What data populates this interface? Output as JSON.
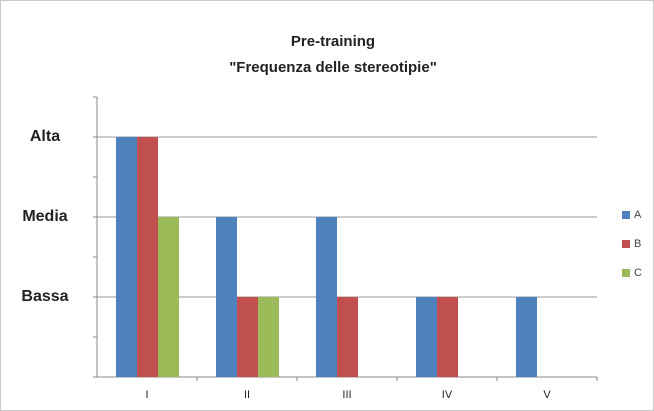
{
  "chart_data": {
    "type": "bar",
    "title": "Pre-training",
    "subtitle": "\"Frequenza delle stereotipie\"",
    "categories": [
      "I",
      "II",
      "III",
      "IV",
      "V"
    ],
    "series": [
      {
        "name": "A",
        "color": "#4f81bd",
        "values": [
          3,
          2,
          2,
          1,
          1
        ]
      },
      {
        "name": "B",
        "color": "#c0504d",
        "values": [
          3,
          1,
          1,
          1,
          null
        ]
      },
      {
        "name": "C",
        "color": "#9bbb59",
        "values": [
          2,
          1,
          null,
          null,
          null
        ]
      }
    ],
    "ylim": [
      0,
      3.5
    ],
    "yticks": [
      {
        "value": 1,
        "label": "Bassa"
      },
      {
        "value": 2,
        "label": "Media"
      },
      {
        "value": 3,
        "label": "Alta"
      }
    ],
    "grid": true,
    "legend": "right"
  }
}
